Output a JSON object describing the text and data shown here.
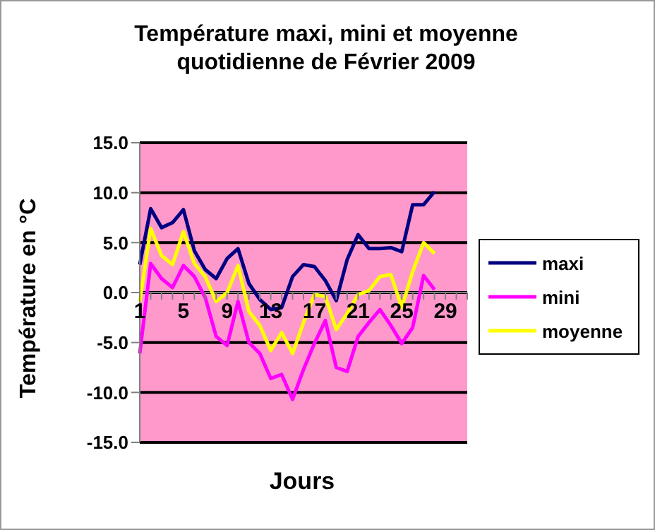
{
  "chart_data": {
    "type": "line",
    "title": "Température maxi, mini et moyenne quotidienne de Février 2009",
    "xlabel": "Jours",
    "ylabel": "Température en °C",
    "categories": [
      "1",
      null,
      null,
      null,
      "5",
      null,
      null,
      null,
      "9",
      null,
      null,
      null,
      "13",
      null,
      null,
      null,
      "17",
      null,
      null,
      null,
      "21",
      null,
      null,
      null,
      "25",
      null,
      null,
      null,
      "29",
      null,
      null
    ],
    "series": [
      {
        "name": "maxi",
        "color": "#000080",
        "values": [
          2.8,
          8.4,
          6.5,
          7.0,
          8.3,
          4.2,
          2.3,
          1.4,
          3.4,
          4.4,
          0.9,
          -0.7,
          -1.7,
          -1.5,
          1.6,
          2.8,
          2.6,
          1.2,
          -0.8,
          3.3,
          5.8,
          4.4,
          4.4,
          4.5,
          4.1,
          8.8,
          8.8,
          10.1,
          null,
          null,
          null
        ]
      },
      {
        "name": "mini",
        "color": "#ff00ff",
        "values": [
          -6.1,
          2.9,
          1.4,
          0.5,
          2.7,
          1.6,
          -0.5,
          -4.4,
          -5.3,
          -0.9,
          -5.0,
          -6.1,
          -8.6,
          -8.2,
          -10.7,
          -7.7,
          -5.1,
          -2.8,
          -7.5,
          -7.9,
          -4.4,
          -3.0,
          -1.7,
          -3.3,
          -5.1,
          -3.5,
          1.7,
          0.3,
          null,
          null,
          null
        ]
      },
      {
        "name": "moyenne",
        "color": "#ffff00",
        "values": [
          -0.9,
          6.4,
          3.7,
          2.8,
          6.1,
          2.9,
          1.6,
          -0.9,
          0.0,
          2.7,
          -1.9,
          -3.3,
          -5.8,
          -4.0,
          -6.1,
          -3.0,
          -0.2,
          -0.4,
          -3.7,
          -2.1,
          -0.2,
          0.2,
          1.6,
          1.8,
          -1.5,
          2.1,
          5.0,
          3.9,
          null,
          null,
          null
        ]
      }
    ],
    "ylim": [
      -15,
      15
    ],
    "yticks": [
      {
        "value": -15,
        "label": "-15.0"
      },
      {
        "value": -10,
        "label": "-10.0"
      },
      {
        "value": -5,
        "label": "-5.0"
      },
      {
        "value": 0,
        "label": "0.0"
      },
      {
        "value": 5,
        "label": "5.0"
      },
      {
        "value": 10,
        "label": "10.0"
      },
      {
        "value": 15,
        "label": "15.0"
      }
    ],
    "grid": "y",
    "legend": "right",
    "marker": "none",
    "line_style": "solid"
  }
}
